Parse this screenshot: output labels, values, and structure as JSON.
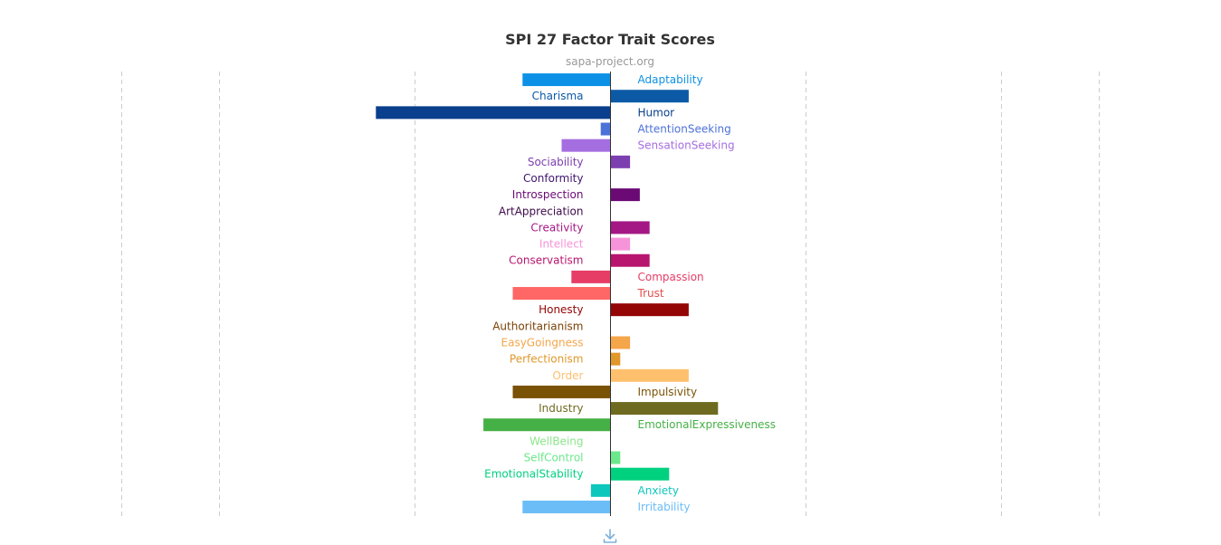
{
  "chart_data": {
    "type": "bar",
    "orientation": "horizontal",
    "title": "SPI 27 Factor Trait Scores",
    "subtitle": "sapa-project.org",
    "xlim": [
      -2.5,
      2.5
    ],
    "grid": true,
    "categories": [
      "Adaptability",
      "Charisma",
      "Humor",
      "AttentionSeeking",
      "SensationSeeking",
      "Sociability",
      "Conformity",
      "Introspection",
      "ArtAppreciation",
      "Creativity",
      "Intellect",
      "Conservatism",
      "Compassion",
      "Trust",
      "Honesty",
      "Authoritarianism",
      "EasyGoingness",
      "Perfectionism",
      "Order",
      "Impulsivity",
      "Industry",
      "EmotionalExpressiveness",
      "WellBeing",
      "SelfControl",
      "EmotionalStability",
      "Anxiety",
      "Irritability"
    ],
    "values": [
      -0.45,
      0.4,
      -1.2,
      -0.05,
      -0.25,
      0.1,
      0,
      0.15,
      0,
      0.2,
      0.1,
      0.2,
      -0.2,
      -0.5,
      0.4,
      0,
      0.1,
      0.05,
      0.4,
      -0.5,
      0.55,
      -0.65,
      0,
      0.05,
      0.3,
      -0.1,
      -0.45
    ],
    "colors": [
      "#0d91e6",
      "#0c5aa6",
      "#093f8c",
      "#4c71d9",
      "#a56ee0",
      "#7c3fb0",
      "#3e1570",
      "#6b0a75",
      "#3d0a4a",
      "#a31885",
      "#f794d9",
      "#b8156e",
      "#e63d66",
      "#ff6666",
      "#940505",
      "#7a4207",
      "#f5a54a",
      "#e0982b",
      "#ffc06e",
      "#7a5205",
      "#6e6b20",
      "#45b045",
      "#8ae68a",
      "#6be88c",
      "#00d17f",
      "#0dc7bd",
      "#6bbdf7"
    ],
    "label_colors": [
      "#0d91e6",
      "#0c5aa6",
      "#093f8c",
      "#4c71d9",
      "#a56ee0",
      "#7c3fb0",
      "#3e1570",
      "#6b0a75",
      "#3d0a4a",
      "#a31885",
      "#f794d9",
      "#b8156e",
      "#e63d66",
      "#e64d4d",
      "#940505",
      "#7a4207",
      "#f5a54a",
      "#e0982b",
      "#ffc06e",
      "#7a5205",
      "#6e6b20",
      "#45b045",
      "#8ae68a",
      "#6be88c",
      "#00d17f",
      "#0dc7bd",
      "#6bbdf7"
    ],
    "xlabel": "",
    "ylabel": ""
  },
  "toolbar": {
    "download_icon": "download-icon"
  }
}
